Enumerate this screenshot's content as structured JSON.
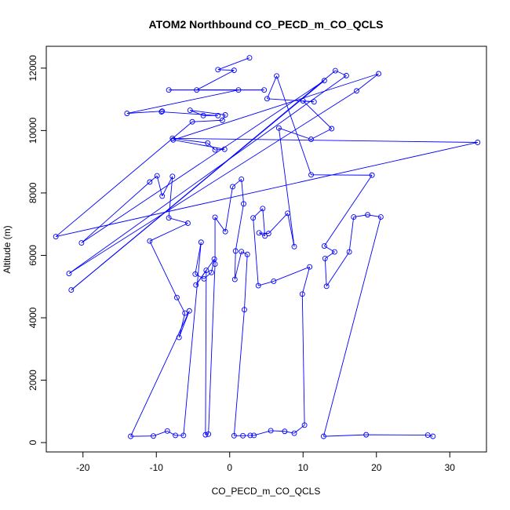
{
  "chart_data": {
    "type": "line",
    "title": "ATOM2 Northbound CO_PECD_m_CO_QCLS",
    "xlabel": "CO_PECD_m_CO_QCLS",
    "ylabel": "Altitude (m)",
    "xlim": [
      -25,
      35
    ],
    "ylim": [
      -300,
      12700
    ],
    "x_ticks": [
      -20,
      -10,
      0,
      10,
      20,
      30
    ],
    "x_tick_labels": [
      "-20",
      "-10",
      "0",
      "10",
      "20",
      "30"
    ],
    "y_ticks": [
      0,
      2000,
      4000,
      6000,
      8000,
      10000,
      12000
    ],
    "y_tick_labels": [
      "0",
      "2000",
      "4000",
      "6000",
      "8000",
      "10000",
      "12000"
    ],
    "grid": false,
    "legend": "none",
    "series_color": "#0000ff",
    "marker": "open-circle",
    "series": [
      {
        "points": [
          [
            2.7,
            12330
          ],
          [
            -1.6,
            11950
          ],
          [
            0.6,
            11930
          ],
          [
            -4.5,
            11300
          ],
          [
            4.7,
            11300
          ],
          [
            -8.3,
            11300
          ],
          [
            1.2,
            11300
          ],
          [
            -14.0,
            10550
          ],
          [
            -9.2,
            10620
          ],
          [
            -9.3,
            10600
          ],
          [
            -1.6,
            10480
          ],
          [
            -3.6,
            10480
          ],
          [
            -5.4,
            10650
          ],
          [
            -0.6,
            10500
          ],
          [
            -1.0,
            10330
          ],
          [
            -5.1,
            10280
          ],
          [
            -23.7,
            6600
          ],
          [
            33.8,
            9620
          ],
          [
            -7.8,
            9750
          ],
          [
            -3.0,
            9600
          ],
          [
            -2.0,
            9380
          ],
          [
            -0.7,
            9400
          ],
          [
            -7.7,
            9700
          ],
          [
            20.3,
            11820
          ],
          [
            17.3,
            11270
          ],
          [
            -21.9,
            5420
          ],
          [
            15.9,
            11760
          ],
          [
            14.4,
            11920
          ],
          [
            -21.6,
            4890
          ],
          [
            12.9,
            11600
          ],
          [
            -20.2,
            6400
          ],
          [
            -10.9,
            8350
          ],
          [
            -9.9,
            8550
          ],
          [
            -9.2,
            7900
          ],
          [
            -7.8,
            8530
          ],
          [
            -8.3,
            7200
          ],
          [
            -5.7,
            7030
          ],
          [
            -10.9,
            6460
          ],
          [
            -7.2,
            4650
          ],
          [
            -6.1,
            4150
          ],
          [
            -6.9,
            3370
          ],
          [
            -5.5,
            4220
          ],
          [
            -13.5,
            200
          ],
          [
            -10.4,
            210
          ],
          [
            -8.5,
            370
          ],
          [
            -7.4,
            230
          ],
          [
            -6.3,
            230
          ],
          [
            -3.9,
            6420
          ],
          [
            -4.7,
            5400
          ],
          [
            -3.5,
            5250
          ],
          [
            -2.5,
            5450
          ],
          [
            -2.1,
            5880
          ],
          [
            -4.6,
            5050
          ],
          [
            -3.2,
            5520
          ],
          [
            -3.3,
            250
          ],
          [
            -2.9,
            270
          ],
          [
            -2.0,
            5720
          ],
          [
            -2.0,
            7220
          ],
          [
            -0.6,
            6760
          ],
          [
            0.4,
            8200
          ],
          [
            1.6,
            8440
          ],
          [
            1.9,
            7650
          ],
          [
            0.8,
            6140
          ],
          [
            0.7,
            5230
          ],
          [
            1.6,
            6120
          ],
          [
            2.4,
            6030
          ],
          [
            2.0,
            4260
          ],
          [
            0.6,
            220
          ],
          [
            1.8,
            220
          ],
          [
            2.8,
            230
          ],
          [
            3.3,
            230
          ],
          [
            5.6,
            380
          ],
          [
            7.5,
            360
          ],
          [
            8.8,
            300
          ],
          [
            10.2,
            560
          ],
          [
            9.9,
            4760
          ],
          [
            10.9,
            5630
          ],
          [
            6.0,
            5170
          ],
          [
            3.9,
            5030
          ],
          [
            3.2,
            7200
          ],
          [
            4.5,
            7500
          ],
          [
            4.8,
            6620
          ],
          [
            4.0,
            6720
          ],
          [
            5.3,
            6700
          ],
          [
            7.9,
            7350
          ],
          [
            8.8,
            6280
          ],
          [
            6.7,
            10080
          ],
          [
            11.1,
            9720
          ],
          [
            13.9,
            10060
          ],
          [
            10.0,
            10950
          ],
          [
            11.5,
            10920
          ],
          [
            5.1,
            11020
          ],
          [
            6.4,
            11750
          ],
          [
            11.1,
            8580
          ],
          [
            19.4,
            8570
          ],
          [
            12.9,
            6300
          ],
          [
            14.3,
            6110
          ],
          [
            13.0,
            5900
          ],
          [
            13.2,
            5010
          ],
          [
            16.3,
            6110
          ],
          [
            16.9,
            7230
          ],
          [
            18.8,
            7300
          ],
          [
            20.6,
            7230
          ],
          [
            12.8,
            200
          ],
          [
            18.6,
            250
          ],
          [
            27.0,
            240
          ],
          [
            27.7,
            200
          ]
        ]
      }
    ]
  }
}
